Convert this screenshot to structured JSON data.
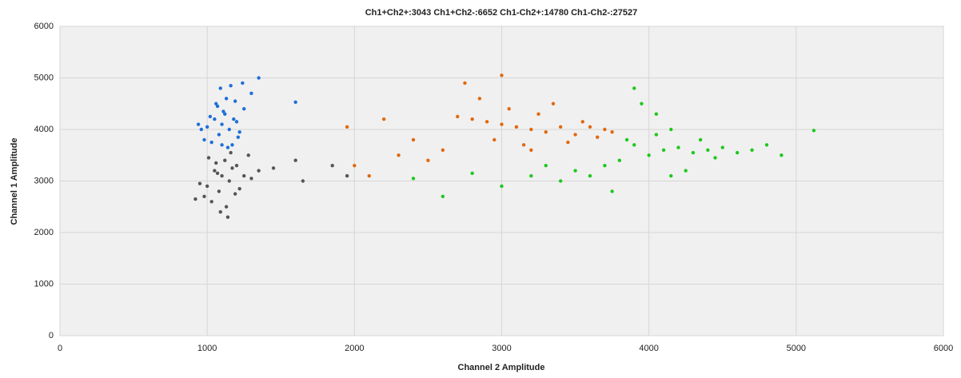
{
  "chart_data": {
    "type": "scatter",
    "title": "Ch1+Ch2+:3043 Ch1+Ch2-:6652 Ch1-Ch2+:14780 Ch1-Ch2-:27527",
    "x_label": "Channel 2 Amplitude",
    "y_label": "Channel 1 Amplitude",
    "xlim": [
      0,
      6000
    ],
    "ylim": [
      0,
      6000
    ],
    "xticks": [
      0,
      1000,
      2000,
      3000,
      4000,
      5000,
      6000
    ],
    "yticks": [
      0,
      1000,
      2000,
      3000,
      4000,
      5000,
      6000
    ],
    "grid": true,
    "series": [
      {
        "color": "#1f6fd6",
        "x": [
          1100,
          1050,
          1150,
          1120,
          1080,
          1000,
          1200,
          1250,
          980,
          1130,
          1170,
          1060,
          1020,
          1220,
          1300,
          1090,
          1140,
          1110,
          1190,
          960,
          1240,
          1030,
          1160,
          1070,
          1210,
          1350,
          1600,
          940,
          1180,
          1100
        ],
        "values": [
          4100,
          4200,
          4000,
          4300,
          3900,
          4050,
          4150,
          4400,
          3800,
          4600,
          3700,
          4500,
          4250,
          3950,
          4700,
          4800,
          3650,
          4350,
          4550,
          4000,
          4900,
          3750,
          4850,
          4450,
          3850,
          5000,
          4530,
          4100,
          4200,
          3700
        ]
      },
      {
        "color": "#555555",
        "x": [
          1100,
          1050,
          1150,
          1000,
          1200,
          1080,
          1120,
          980,
          1250,
          1030,
          1170,
          1130,
          1060,
          950,
          1300,
          1090,
          1190,
          1010,
          1220,
          1140,
          920,
          1280,
          1070,
          1160,
          1350,
          1450,
          1600,
          1650,
          1850,
          1950
        ],
        "values": [
          3100,
          3200,
          3000,
          2900,
          3300,
          2800,
          3400,
          2700,
          3100,
          2600,
          3250,
          2500,
          3350,
          2950,
          3050,
          2400,
          2750,
          3450,
          2850,
          2300,
          2650,
          3500,
          3150,
          3550,
          3200,
          3250,
          3400,
          3000,
          3300,
          3100
        ]
      },
      {
        "color": "#e0690f",
        "x": [
          3100,
          3000,
          3200,
          2900,
          3300,
          2800,
          3400,
          3500,
          2700,
          3600,
          3050,
          3150,
          2950,
          3250,
          2850,
          3700,
          2600,
          2500,
          3350,
          3450,
          2400,
          2300,
          2200,
          3750,
          2000,
          1950,
          2100,
          3550,
          2750,
          3650,
          3000,
          3200
        ],
        "values": [
          4050,
          4100,
          4000,
          4150,
          3950,
          4200,
          4050,
          3900,
          4250,
          4050,
          4400,
          3700,
          3800,
          4300,
          4600,
          4000,
          3600,
          3400,
          4500,
          3750,
          3800,
          3500,
          4200,
          3950,
          3300,
          4050,
          3100,
          4150,
          4900,
          3850,
          5050,
          3600
        ]
      },
      {
        "color": "#1ec81e",
        "x": [
          4100,
          4000,
          4200,
          3900,
          4300,
          4400,
          3800,
          4500,
          4600,
          3700,
          4150,
          4050,
          4250,
          3950,
          4700,
          4800,
          3600,
          3500,
          3400,
          3300,
          3200,
          3000,
          2800,
          2600,
          2400,
          4350,
          4450,
          4050,
          3850,
          4900,
          5120,
          3900,
          4150,
          3750
        ],
        "values": [
          3600,
          3500,
          3650,
          3700,
          3550,
          3600,
          3400,
          3650,
          3550,
          3300,
          4000,
          4300,
          3200,
          4500,
          3600,
          3700,
          3100,
          3200,
          3000,
          3300,
          3100,
          2900,
          3150,
          2700,
          3050,
          3800,
          3450,
          3900,
          3800,
          3500,
          3980,
          4800,
          3100,
          2800
        ]
      }
    ]
  }
}
